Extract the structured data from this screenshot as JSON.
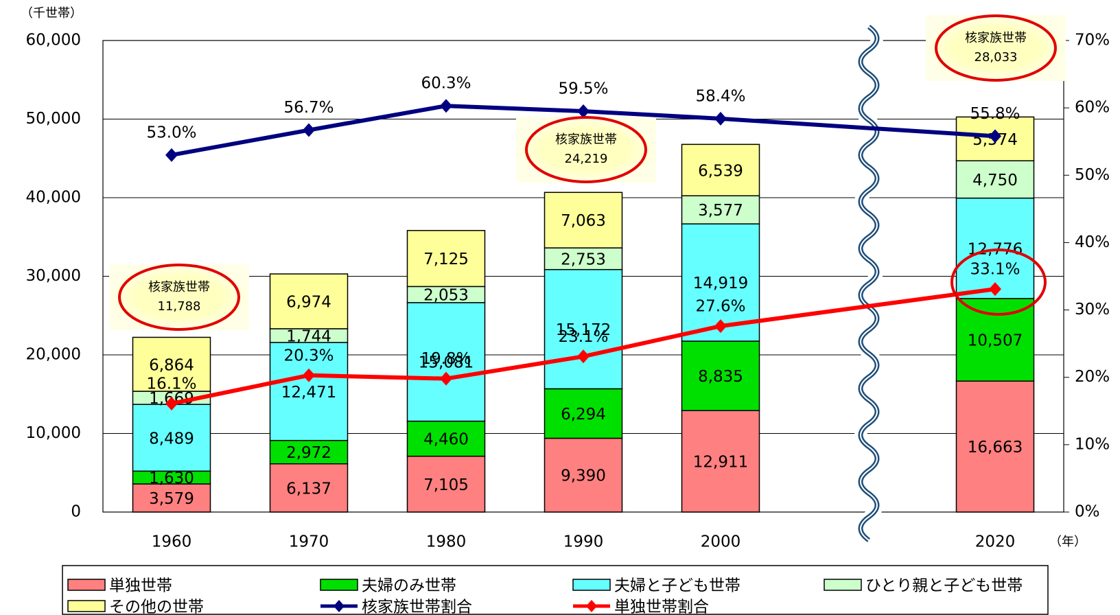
{
  "chart_data": {
    "type": "bar",
    "stacked": true,
    "y_label": "（千世帯）",
    "x_label": "（年）",
    "x": [
      1960,
      1970,
      1980,
      1990,
      2000,
      2020
    ],
    "xlim": [
      1955,
      2025
    ],
    "ylim": [
      0,
      60000
    ],
    "yticks": [
      0,
      {
        "value": 10000,
        "label": "10,000"
      },
      {
        "value": 20000,
        "label": "20,000"
      },
      {
        "value": 30000,
        "label": "30,000"
      },
      {
        "value": 40000,
        "label": "40,000"
      },
      {
        "value": 50000,
        "label": "50,000"
      },
      {
        "value": 60000,
        "label": "60,000"
      }
    ],
    "y2lim": [
      0,
      70
    ],
    "y2ticks": [
      {
        "value": 0,
        "label": "0%"
      },
      {
        "value": 10,
        "label": "10%"
      },
      {
        "value": 20,
        "label": "20%"
      },
      {
        "value": 30,
        "label": "30%"
      },
      {
        "value": 40,
        "label": "40%"
      },
      {
        "value": 50,
        "label": "50%"
      },
      {
        "value": 60,
        "label": "60%"
      },
      {
        "value": 70,
        "label": "70%"
      }
    ],
    "grid": true,
    "series": [
      {
        "name": "単独世帯",
        "type": "bar",
        "color": "#ff8080",
        "values": [
          3579,
          6137,
          7105,
          9390,
          12911,
          16663
        ],
        "value_labels": [
          "3,579",
          "6,137",
          "7,105",
          "9,390",
          "12,911",
          "16,663"
        ]
      },
      {
        "name": "夫婦のみ世帯",
        "type": "bar",
        "color": "#00e000",
        "values": [
          1630,
          2972,
          4460,
          6294,
          8835,
          10507
        ],
        "value_labels": [
          "1,630",
          "2,972",
          "4,460",
          "6,294",
          "8,835",
          "10,507"
        ]
      },
      {
        "name": "夫婦と子ども世帯",
        "type": "bar",
        "color": "#66ffff",
        "values": [
          8489,
          12471,
          15081,
          15172,
          14919,
          12776
        ],
        "value_labels": [
          "8,489",
          "12,471",
          "15,081",
          "15,172",
          "14,919",
          "12,776"
        ]
      },
      {
        "name": "ひとり親と子ども世帯",
        "type": "bar",
        "color": "#ccffcc",
        "values": [
          1669,
          1744,
          2053,
          2753,
          3577,
          4750
        ],
        "value_labels": [
          "1,669",
          "1,744",
          "2,053",
          "2,753",
          "3,577",
          "4,750"
        ]
      },
      {
        "name": "その他の世帯",
        "type": "bar",
        "color": "#ffff99",
        "values": [
          6864,
          6974,
          7125,
          7063,
          6539,
          5574
        ],
        "value_labels": [
          "6,864",
          "6,974",
          "7,125",
          "7,063",
          "6,539",
          "5,574"
        ]
      },
      {
        "name": "核家族世帯割合",
        "type": "line",
        "axis": "y2",
        "color": "#000080",
        "values": [
          53.0,
          56.7,
          60.3,
          59.5,
          58.4,
          55.8
        ],
        "value_labels": [
          "53.0%",
          "56.7%",
          "60.3%",
          "59.5%",
          "58.4%",
          "55.8%"
        ]
      },
      {
        "name": "単独世帯割合",
        "type": "line",
        "axis": "y2",
        "color": "#ff0000",
        "values": [
          16.1,
          20.3,
          19.8,
          23.1,
          27.6,
          33.1
        ],
        "value_labels": [
          "16.1%",
          "20.3%",
          "19.8%",
          "23.1%",
          "27.6%",
          "33.1%"
        ]
      }
    ],
    "annotations": [
      {
        "title": "核家族世帯",
        "label": "11,788"
      },
      {
        "title": "核家族世帯",
        "label": "24,219"
      },
      {
        "title": "核家族世帯",
        "label": "28,033"
      }
    ]
  }
}
